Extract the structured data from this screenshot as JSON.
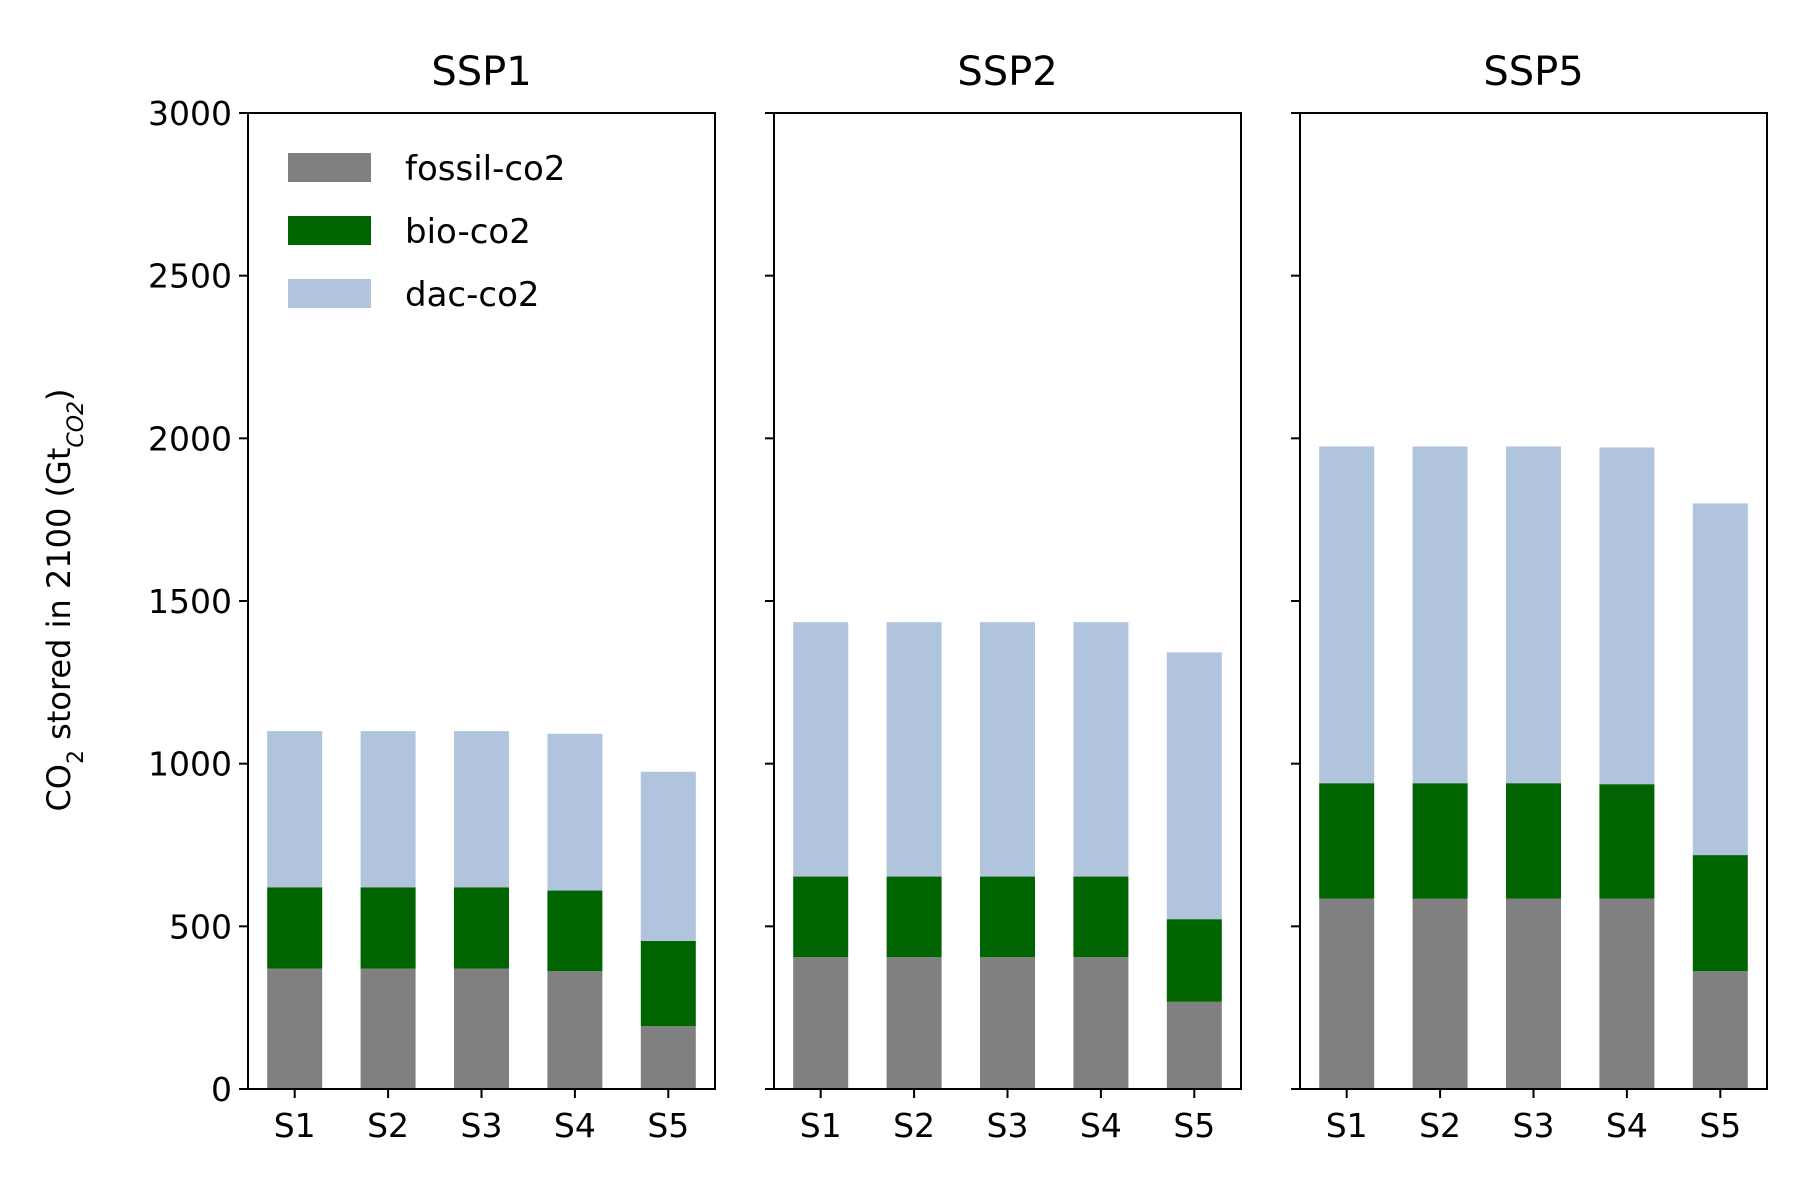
{
  "chart_data": {
    "type": "bar",
    "stacked": true,
    "ylabel": {
      "prefix": "CO",
      "sub": "2",
      "middle": " stored in 2100 (Gt",
      "unit_sub": "CO2",
      "suffix": ")"
    },
    "ylim": [
      0,
      3000
    ],
    "yticks": [
      0,
      500,
      1000,
      1500,
      2000,
      2500,
      3000
    ],
    "categories": [
      "S1",
      "S2",
      "S3",
      "S4",
      "S5"
    ],
    "legend": {
      "position": "upper-left",
      "entries": [
        {
          "name": "fossil-co2",
          "color": "#808080"
        },
        {
          "name": "bio-co2",
          "color": "#006400"
        },
        {
          "name": "dac-co2",
          "color": "#b0c4de"
        }
      ]
    },
    "panels": [
      {
        "title": "SSP1",
        "series": [
          {
            "name": "fossil-co2",
            "color": "#808080",
            "values": [
              370,
              370,
              370,
              362,
              193
            ]
          },
          {
            "name": "bio-co2",
            "color": "#006400",
            "values": [
              250,
              250,
              250,
              248,
              262
            ]
          },
          {
            "name": "dac-co2",
            "color": "#b0c4de",
            "values": [
              480,
              480,
              480,
              482,
              520
            ]
          }
        ]
      },
      {
        "title": "SSP2",
        "series": [
          {
            "name": "fossil-co2",
            "color": "#808080",
            "values": [
              405,
              405,
              405,
              405,
              268
            ]
          },
          {
            "name": "bio-co2",
            "color": "#006400",
            "values": [
              248,
              248,
              248,
              248,
              254
            ]
          },
          {
            "name": "dac-co2",
            "color": "#b0c4de",
            "values": [
              782,
              782,
              782,
              782,
              820
            ]
          }
        ]
      },
      {
        "title": "SSP5",
        "series": [
          {
            "name": "fossil-co2",
            "color": "#808080",
            "values": [
              585,
              585,
              585,
              585,
              362
            ]
          },
          {
            "name": "bio-co2",
            "color": "#006400",
            "values": [
              355,
              355,
              355,
              352,
              357
            ]
          },
          {
            "name": "dac-co2",
            "color": "#b0c4de",
            "values": [
              1035,
              1035,
              1035,
              1035,
              1081
            ]
          }
        ]
      }
    ]
  }
}
